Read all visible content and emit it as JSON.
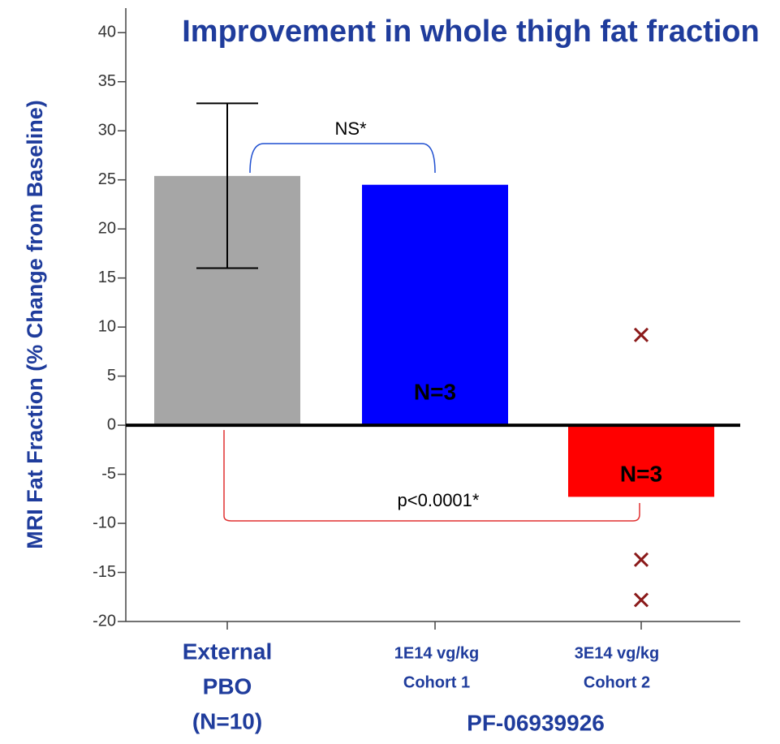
{
  "chart_data": {
    "type": "bar",
    "title": "Improvement in whole thigh fat fraction",
    "y_label": "MRI Fat Fraction (% Change from Baseline)",
    "categories": [
      [
        "External",
        "PBO",
        "(N=10)"
      ],
      [
        "1E14 vg/kg",
        "Cohort 1"
      ],
      [
        "3E14 vg/kg",
        "Cohort 2"
      ]
    ],
    "group_label": "PF-06939926",
    "values": [
      25.4,
      24.5,
      -7.3
    ],
    "colors": [
      "#a6a6a6",
      "#0000ff",
      "#ff0000"
    ],
    "error_high": [
      32.8,
      null,
      null
    ],
    "error_low": [
      16,
      null,
      null
    ],
    "points": [
      [],
      [],
      [
        9.2,
        -13.7,
        -17.8
      ]
    ],
    "point_color": "#8b1a1a",
    "n_labels": [
      null,
      "N=3",
      "N=3"
    ],
    "annotations": [
      "NS*",
      "p<0.0001*"
    ],
    "ylim": [
      -20,
      42.5
    ],
    "yticks": [
      -20,
      -15,
      -10,
      -5,
      0,
      5,
      10,
      15,
      20,
      25,
      30,
      35,
      40
    ]
  }
}
